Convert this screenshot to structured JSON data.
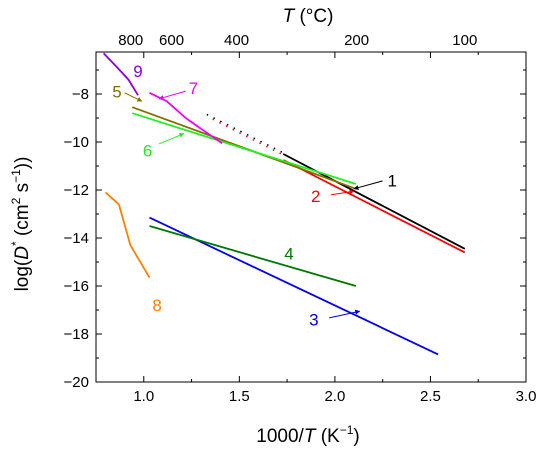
{
  "chart_data": {
    "type": "line",
    "xlabel": {
      "pre": "1000/",
      "var": "T",
      "post": " (K",
      "sup": "−1",
      "close": ")"
    },
    "ylabel": {
      "pre": "log(",
      "var": "D",
      "sup1": "*",
      "mid": " (cm",
      "sup2": "2",
      "mid2": " s",
      "sup3": "−1",
      "close": "))"
    },
    "x2label": {
      "var": "T",
      "post": " (°C)"
    },
    "xlim": [
      0.75,
      3.0
    ],
    "ylim": [
      -20,
      -6.25
    ],
    "xticks": [
      1.0,
      1.5,
      2.0,
      2.5,
      3.0
    ],
    "xtick_labels": [
      "1.0",
      "1.5",
      "2.0",
      "2.5",
      "3.0"
    ],
    "yticks": [
      -20,
      -18,
      -16,
      -14,
      -12,
      -10,
      -8
    ],
    "ytick_labels": [
      "−20",
      "−18",
      "−16",
      "−14",
      "−12",
      "−10",
      "−8"
    ],
    "x2ticks_celsius": [
      800,
      600,
      400,
      200,
      100
    ],
    "x2tick_labels": [
      "800",
      "600",
      "400",
      "200",
      "100"
    ],
    "series": [
      {
        "name": "1",
        "color": "#000000",
        "points": [
          [
            1.73,
            -10.5
          ],
          [
            2.68,
            -14.45
          ]
        ]
      },
      {
        "name": "2",
        "color": "#ff0000",
        "points": [
          [
            1.73,
            -10.75
          ],
          [
            2.68,
            -14.6
          ]
        ]
      },
      {
        "name": "3",
        "color": "#0000ee",
        "points": [
          [
            1.03,
            -13.15
          ],
          [
            2.54,
            -18.85
          ]
        ]
      },
      {
        "name": "4",
        "color": "#007700",
        "points": [
          [
            1.03,
            -13.5
          ],
          [
            2.11,
            -16.0
          ]
        ]
      },
      {
        "name": "5",
        "color": "#807000",
        "points": [
          [
            0.94,
            -8.55
          ],
          [
            2.11,
            -11.95
          ]
        ]
      },
      {
        "name": "6",
        "color": "#22ee22",
        "points": [
          [
            0.94,
            -8.8
          ],
          [
            2.11,
            -11.75
          ]
        ]
      },
      {
        "name": "7",
        "color": "#ee00ee",
        "points": [
          [
            1.03,
            -7.95
          ],
          [
            1.12,
            -8.3
          ],
          [
            1.22,
            -9.0
          ],
          [
            1.3,
            -9.45
          ],
          [
            1.41,
            -10.05
          ]
        ]
      },
      {
        "name": "8",
        "color": "#ff8000",
        "points": [
          [
            0.8,
            -12.1
          ],
          [
            0.87,
            -12.6
          ],
          [
            0.93,
            -14.3
          ],
          [
            1.03,
            -15.65
          ]
        ]
      },
      {
        "name": "9",
        "color": "#8800dd",
        "points": [
          [
            0.79,
            -6.3
          ],
          [
            0.85,
            -6.8
          ],
          [
            0.92,
            -7.4
          ],
          [
            0.97,
            -8.05
          ]
        ]
      }
    ],
    "dotted_series": [
      {
        "color": "#000000",
        "points": [
          [
            1.33,
            -8.85
          ],
          [
            1.73,
            -10.45
          ]
        ]
      },
      {
        "color": "#ff0000",
        "points": [
          [
            1.36,
            -9.05
          ],
          [
            1.72,
            -10.5
          ]
        ]
      }
    ],
    "annotations": [
      {
        "text": "1",
        "color": "#000000",
        "label_at": [
          2.3,
          -11.6
        ],
        "arrow_from": [
          2.25,
          -11.62
        ],
        "arrow_to": [
          2.1,
          -11.95
        ]
      },
      {
        "text": "2",
        "color": "#ff0000",
        "label_at": [
          1.9,
          -12.25
        ],
        "arrow_from": [
          1.98,
          -12.2
        ],
        "arrow_to": [
          2.1,
          -12.05
        ]
      },
      {
        "text": "3",
        "color": "#0000ee",
        "label_at": [
          1.89,
          -17.4
        ],
        "arrow_from": [
          1.97,
          -17.33
        ],
        "arrow_to": [
          2.13,
          -17.05
        ]
      },
      {
        "text": "4",
        "color": "#007700",
        "label_at": [
          1.76,
          -14.65
        ],
        "arrow_from": null,
        "arrow_to": null
      },
      {
        "text": "5",
        "color": "#807000",
        "label_at": [
          0.86,
          -7.9
        ],
        "arrow_from": [
          0.9,
          -7.95
        ],
        "arrow_to": [
          0.99,
          -8.3
        ]
      },
      {
        "text": "6",
        "color": "#22ee22",
        "label_at": [
          1.02,
          -10.35
        ],
        "arrow_from": [
          1.08,
          -10.08
        ],
        "arrow_to": [
          1.21,
          -9.65
        ]
      },
      {
        "text": "7",
        "color": "#ee00ee",
        "label_at": [
          1.26,
          -7.75
        ],
        "arrow_from": [
          1.22,
          -7.88
        ],
        "arrow_to": [
          1.08,
          -8.2
        ]
      },
      {
        "text": "8",
        "color": "#ff8000",
        "label_at": [
          1.07,
          -16.8
        ],
        "arrow_from": null,
        "arrow_to": null
      },
      {
        "text": "9",
        "color": "#8800dd",
        "label_at": [
          0.97,
          -7.05
        ],
        "arrow_from": null,
        "arrow_to": null
      }
    ],
    "grid": false,
    "legend": "none"
  }
}
